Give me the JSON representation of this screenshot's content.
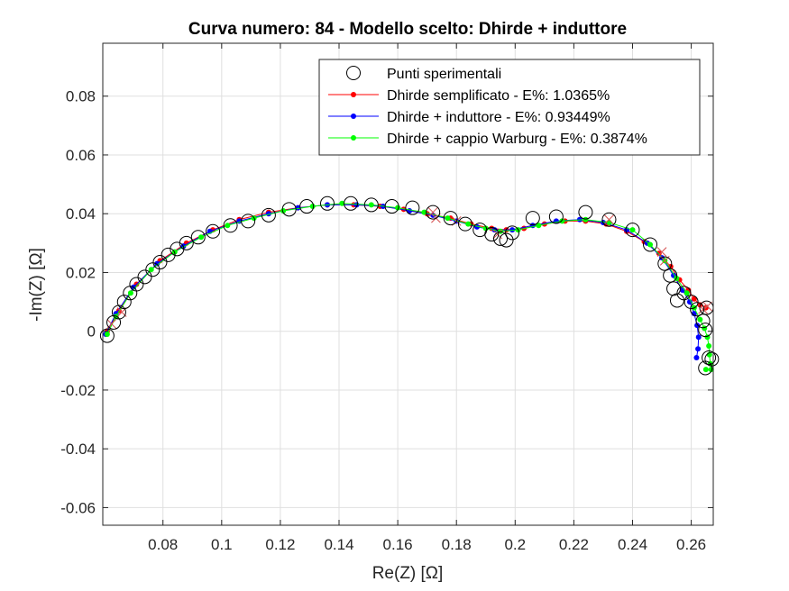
{
  "chart_data": {
    "type": "scatter",
    "title": "Curva numero: 84 - Modello scelto: Dhirde + induttore",
    "xlabel": "Re(Z) [Ω]",
    "ylabel": "-Im(Z) [Ω]",
    "xlim": [
      0.0595,
      0.2675
    ],
    "ylim": [
      -0.066,
      0.098
    ],
    "xticks": [
      0.08,
      0.1,
      0.12,
      0.14,
      0.16,
      0.18,
      0.2,
      0.22,
      0.24,
      0.26
    ],
    "xtick_labels": [
      "0.08",
      "0.1",
      "0.12",
      "0.14",
      "0.16",
      "0.18",
      "0.2",
      "0.22",
      "0.24",
      "0.26"
    ],
    "yticks": [
      -0.06,
      -0.04,
      -0.02,
      0,
      0.02,
      0.04,
      0.06,
      0.08
    ],
    "ytick_labels": [
      "-0.06",
      "-0.04",
      "-0.02",
      "0",
      "0.02",
      "0.04",
      "0.06",
      "0.08"
    ],
    "grid": true,
    "legend_position": "top-right",
    "colors": {
      "axis": "#262626",
      "grid": "#dfdfdf",
      "experimental": "#000000",
      "mismatch": "#d45050"
    },
    "series": [
      {
        "name": "Punti sperimentali",
        "style": "open-circle",
        "color": "#000000",
        "x": [
          0.061,
          0.0632,
          0.065,
          0.0668,
          0.0688,
          0.071,
          0.0738,
          0.0765,
          0.079,
          0.0818,
          0.0848,
          0.088,
          0.092,
          0.097,
          0.103,
          0.109,
          0.116,
          0.123,
          0.129,
          0.136,
          0.144,
          0.151,
          0.158,
          0.165,
          0.172,
          0.178,
          0.183,
          0.188,
          0.192,
          0.195,
          0.197,
          0.199,
          0.206,
          0.214,
          0.224,
          0.232,
          0.24,
          0.246,
          0.251,
          0.2528,
          0.254,
          0.2552,
          0.2575,
          0.26,
          0.262,
          0.264,
          0.2648,
          0.2652,
          0.266,
          0.2648,
          0.267
        ],
        "y": [
          -0.0015,
          0.003,
          0.0065,
          0.01,
          0.013,
          0.016,
          0.0185,
          0.021,
          0.0235,
          0.026,
          0.028,
          0.03,
          0.032,
          0.034,
          0.036,
          0.0375,
          0.0395,
          0.0415,
          0.0425,
          0.0435,
          0.0435,
          0.043,
          0.0425,
          0.042,
          0.0405,
          0.0385,
          0.0365,
          0.0345,
          0.033,
          0.0315,
          0.031,
          0.0335,
          0.0385,
          0.039,
          0.0405,
          0.038,
          0.0345,
          0.0295,
          0.023,
          0.019,
          0.0145,
          0.0105,
          0.013,
          0.01,
          0.0075,
          0.0035,
          0.0005,
          0.008,
          -0.009,
          -0.0125,
          -0.0095
        ]
      },
      {
        "name": "Dhirde semplificato - E%: 1.0365%",
        "style": "line-dot",
        "color": "#ff0000",
        "x": [
          0.061,
          0.065,
          0.071,
          0.079,
          0.088,
          0.097,
          0.106,
          0.116,
          0.126,
          0.136,
          0.145,
          0.154,
          0.162,
          0.17,
          0.178,
          0.185,
          0.192,
          0.197,
          0.203,
          0.21,
          0.217,
          0.224,
          0.231,
          0.238,
          0.244,
          0.249,
          0.253,
          0.256,
          0.259,
          0.261,
          0.263,
          0.265
        ],
        "y": [
          0.0,
          0.007,
          0.016,
          0.024,
          0.03,
          0.0345,
          0.038,
          0.0405,
          0.042,
          0.043,
          0.043,
          0.0425,
          0.0415,
          0.04,
          0.0385,
          0.0365,
          0.035,
          0.0345,
          0.035,
          0.0365,
          0.0375,
          0.0375,
          0.0365,
          0.034,
          0.0305,
          0.0265,
          0.022,
          0.0175,
          0.014,
          0.011,
          0.009,
          0.008
        ]
      },
      {
        "name": "Dhirde + induttore - E%: 0.93449%",
        "style": "line-dot",
        "color": "#0000ff",
        "x": [
          0.0605,
          0.064,
          0.07,
          0.078,
          0.087,
          0.096,
          0.106,
          0.116,
          0.126,
          0.136,
          0.146,
          0.155,
          0.164,
          0.172,
          0.18,
          0.187,
          0.193,
          0.199,
          0.206,
          0.214,
          0.222,
          0.23,
          0.238,
          0.245,
          0.25,
          0.254,
          0.257,
          0.2595,
          0.261,
          0.262,
          0.2625,
          0.2623,
          0.2618
        ],
        "y": [
          -0.001,
          0.006,
          0.015,
          0.023,
          0.029,
          0.034,
          0.0375,
          0.04,
          0.042,
          0.043,
          0.043,
          0.0425,
          0.041,
          0.0395,
          0.0375,
          0.0355,
          0.0345,
          0.0345,
          0.036,
          0.0375,
          0.038,
          0.037,
          0.0345,
          0.03,
          0.025,
          0.019,
          0.014,
          0.01,
          0.006,
          0.002,
          -0.002,
          -0.006,
          -0.009
        ]
      },
      {
        "name": "Dhirde + cappio Warburg - E%: 0.3874%",
        "style": "line-dot",
        "color": "#00ff00",
        "x": [
          0.061,
          0.064,
          0.069,
          0.076,
          0.084,
          0.093,
          0.102,
          0.111,
          0.121,
          0.131,
          0.141,
          0.151,
          0.16,
          0.169,
          0.177,
          0.184,
          0.19,
          0.195,
          0.201,
          0.208,
          0.216,
          0.224,
          0.232,
          0.24,
          0.246,
          0.251,
          0.255,
          0.2585,
          0.261,
          0.263,
          0.2645,
          0.2655,
          0.266,
          0.2662,
          0.2665,
          0.2668,
          0.265
        ],
        "y": [
          -0.001,
          0.005,
          0.013,
          0.021,
          0.027,
          0.032,
          0.036,
          0.0385,
          0.041,
          0.0425,
          0.0435,
          0.043,
          0.042,
          0.0405,
          0.0385,
          0.0365,
          0.035,
          0.034,
          0.0345,
          0.036,
          0.0375,
          0.038,
          0.037,
          0.0345,
          0.0295,
          0.024,
          0.018,
          0.013,
          0.008,
          0.004,
          0.001,
          -0.002,
          -0.005,
          -0.008,
          -0.011,
          -0.013,
          -0.013
        ]
      }
    ],
    "mismatch_markers": {
      "style": "x-cross",
      "color": "#d45050",
      "x": [
        0.0625,
        0.066,
        0.172,
        0.173,
        0.18,
        0.194,
        0.232,
        0.25,
        0.251,
        0.264,
        0.2655
      ],
      "y": [
        0.0025,
        0.0065,
        0.0405,
        0.0385,
        0.0375,
        0.033,
        0.038,
        0.027,
        0.024,
        0.0075,
        0.0085
      ]
    }
  }
}
